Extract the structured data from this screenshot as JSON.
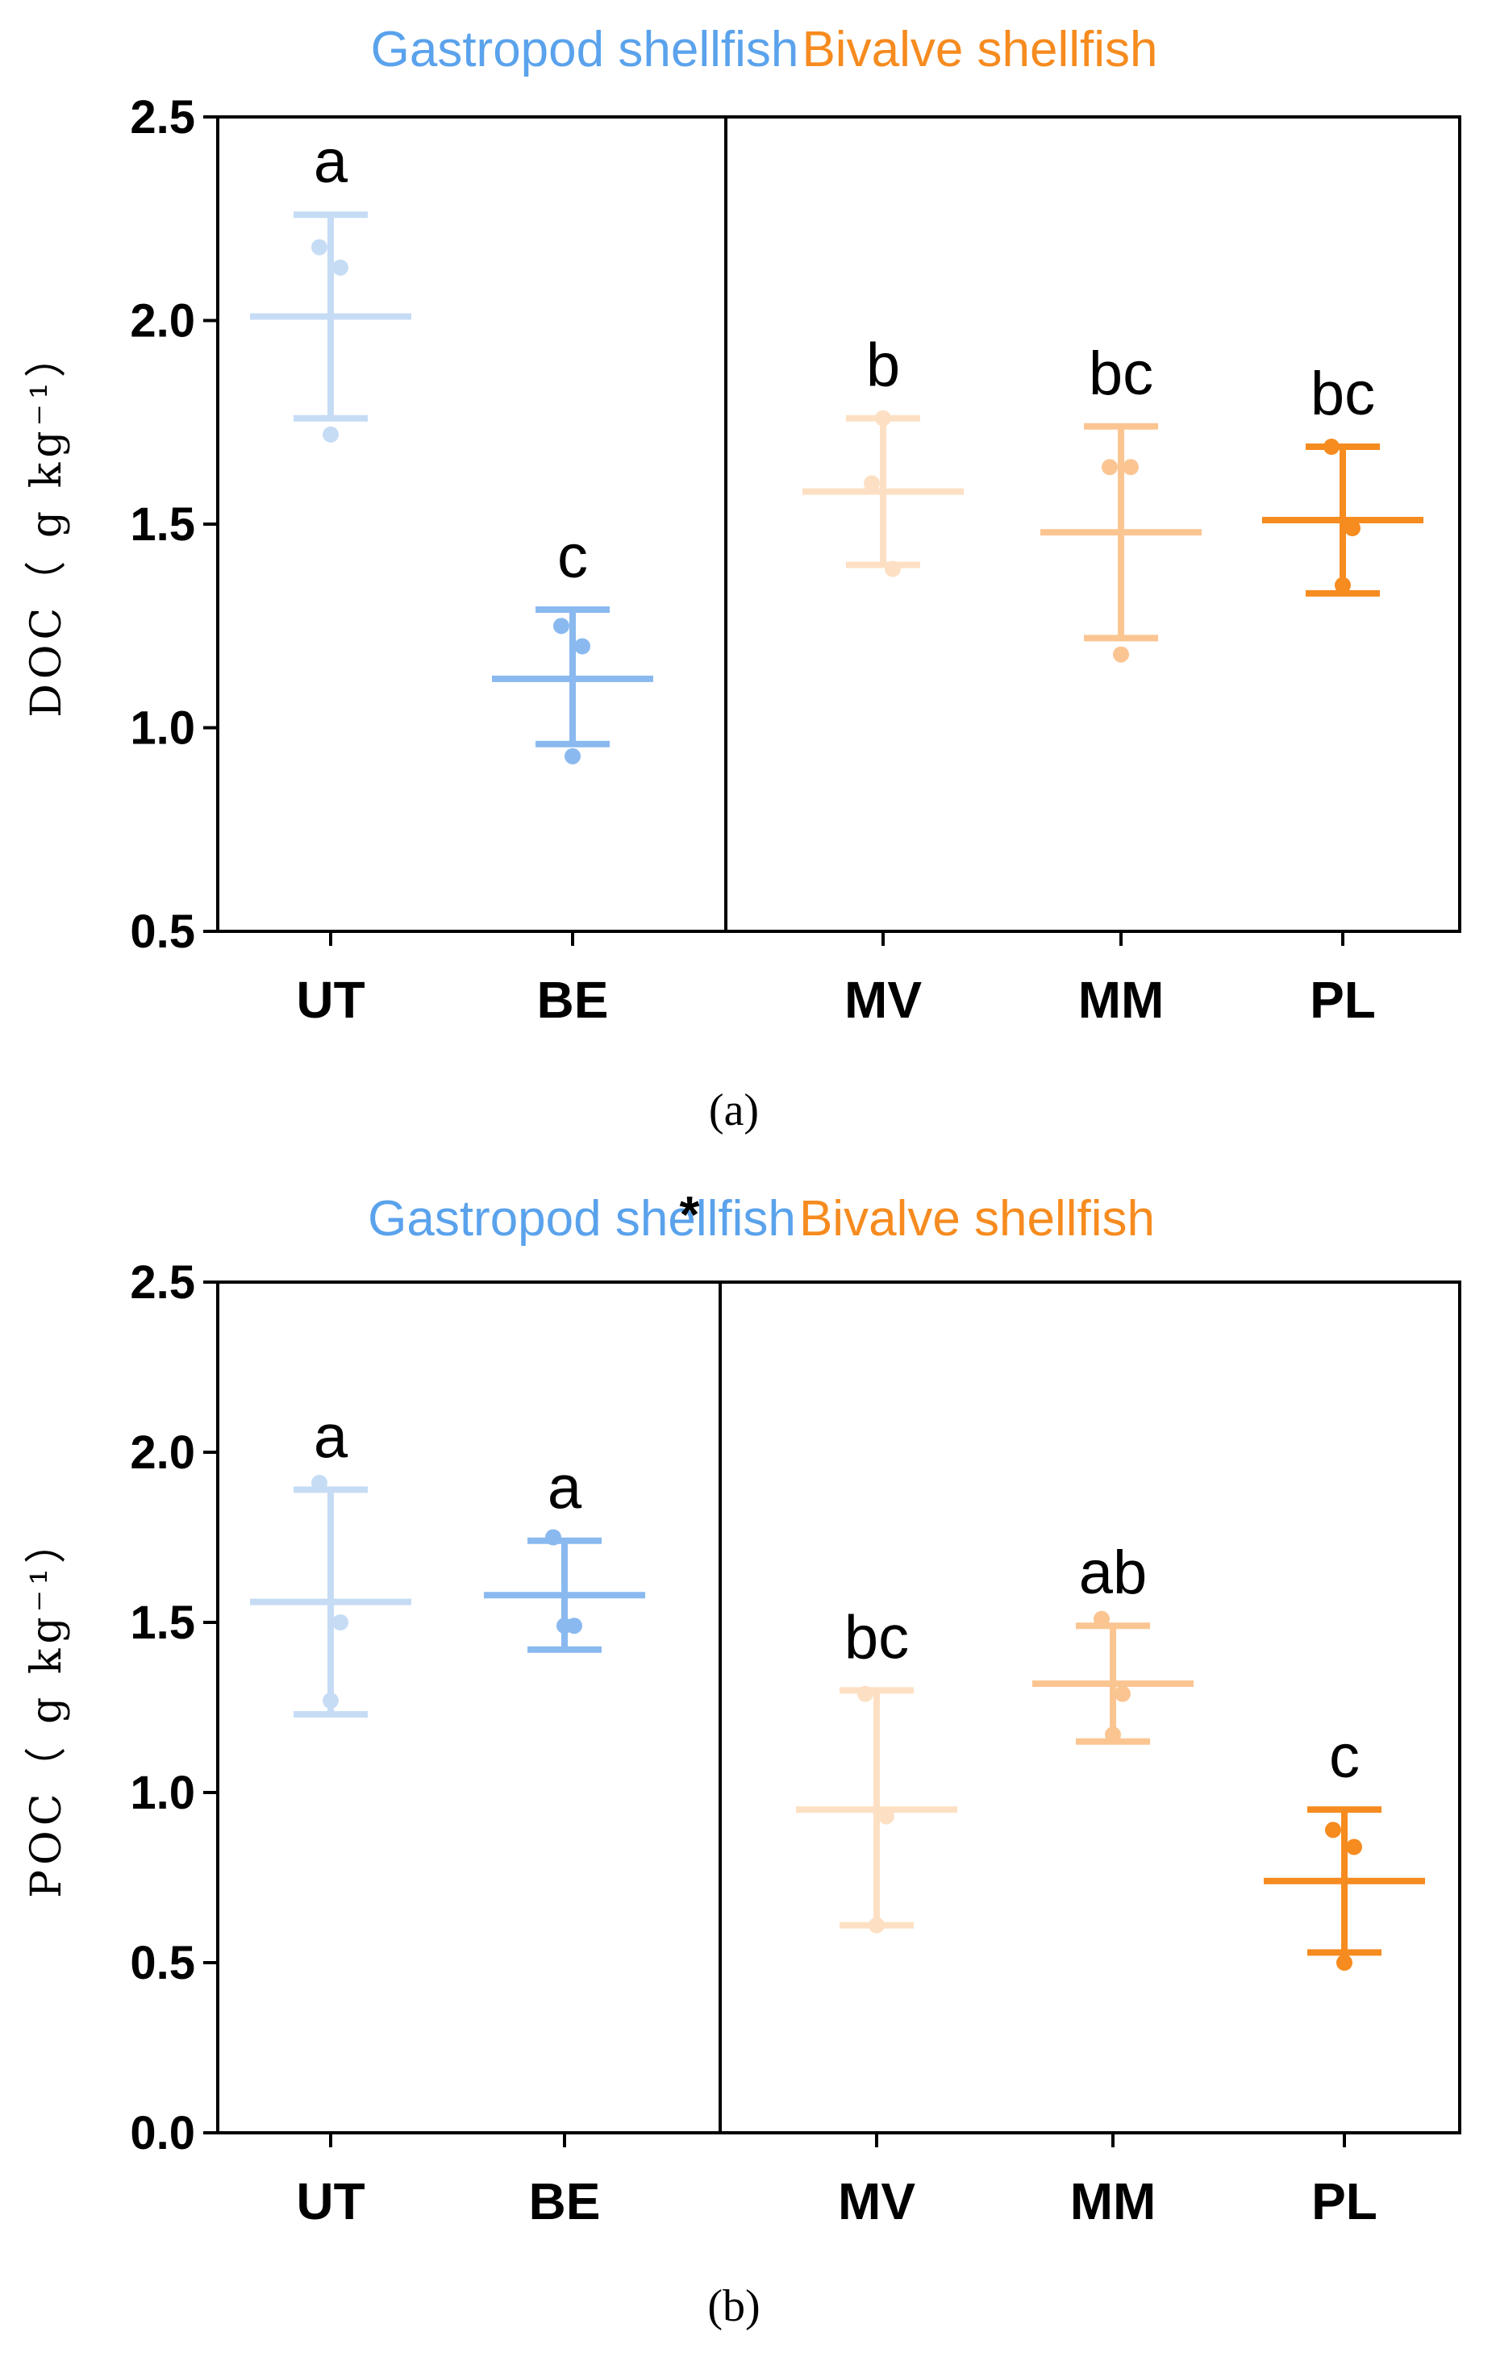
{
  "colors": {
    "UT": "#c6dcf5",
    "BE": "#8ab9ef",
    "MV": "#fde0c4",
    "MM": "#fbc592",
    "PL": "#f68b1f",
    "gastropod_label": "#5aa2ec",
    "bivalve_label": "#f68b1f",
    "axis": "#000000"
  },
  "chart_data": [
    {
      "type": "scatter",
      "panel_label": "(a)",
      "ylabel": "DOC（ g kg⁻¹）",
      "ylim": [
        0.5,
        2.5
      ],
      "yticks": [
        "0.5",
        "1.0",
        "1.5",
        "2.0",
        "2.5"
      ],
      "grid": false,
      "groups": [
        {
          "name": "Gastropod shellfish",
          "marker": "",
          "categories": [
            "UT",
            "BE"
          ]
        },
        {
          "name": "Bivalve shellfish",
          "marker": "",
          "categories": [
            "MV",
            "MM",
            "PL"
          ]
        }
      ],
      "categories": [
        "UT",
        "BE",
        "MV",
        "MM",
        "PL"
      ],
      "series": [
        {
          "name": "UT",
          "mean": 2.01,
          "sd_low": 1.76,
          "sd_high": 2.26,
          "points": [
            2.18,
            2.13,
            1.72
          ],
          "letter": "a"
        },
        {
          "name": "BE",
          "mean": 1.12,
          "sd_low": 0.96,
          "sd_high": 1.29,
          "points": [
            1.25,
            1.2,
            0.93
          ],
          "letter": "c"
        },
        {
          "name": "MV",
          "mean": 1.58,
          "sd_low": 1.4,
          "sd_high": 1.76,
          "points": [
            1.6,
            1.39,
            1.76
          ],
          "letter": "b"
        },
        {
          "name": "MM",
          "mean": 1.48,
          "sd_low": 1.22,
          "sd_high": 1.74,
          "points": [
            1.64,
            1.64,
            1.18
          ],
          "letter": "bc"
        },
        {
          "name": "PL",
          "mean": 1.51,
          "sd_low": 1.33,
          "sd_high": 1.69,
          "points": [
            1.69,
            1.49,
            1.35
          ],
          "letter": "bc"
        }
      ]
    },
    {
      "type": "scatter",
      "panel_label": "(b)",
      "ylabel": "POC（ g kg⁻¹）",
      "ylim": [
        0.0,
        2.5
      ],
      "yticks": [
        "0.0",
        "0.5",
        "1.0",
        "1.5",
        "2.0",
        "2.5"
      ],
      "grid": false,
      "groups": [
        {
          "name": "Gastropod shellfish",
          "marker": "*",
          "categories": [
            "UT",
            "BE"
          ]
        },
        {
          "name": "Bivalve shellfish",
          "marker": "",
          "categories": [
            "MV",
            "MM",
            "PL"
          ]
        }
      ],
      "categories": [
        "UT",
        "BE",
        "MV",
        "MM",
        "PL"
      ],
      "series": [
        {
          "name": "UT",
          "mean": 1.56,
          "sd_low": 1.23,
          "sd_high": 1.89,
          "points": [
            1.91,
            1.5,
            1.27
          ],
          "letter": "a"
        },
        {
          "name": "BE",
          "mean": 1.58,
          "sd_low": 1.42,
          "sd_high": 1.74,
          "points": [
            1.75,
            1.49,
            1.49
          ],
          "letter": "a"
        },
        {
          "name": "MV",
          "mean": 0.95,
          "sd_low": 0.61,
          "sd_high": 1.3,
          "points": [
            1.29,
            0.93,
            0.61
          ],
          "letter": "bc"
        },
        {
          "name": "MM",
          "mean": 1.32,
          "sd_low": 1.15,
          "sd_high": 1.49,
          "points": [
            1.51,
            1.29,
            1.17
          ],
          "letter": "ab"
        },
        {
          "name": "PL",
          "mean": 0.74,
          "sd_low": 0.53,
          "sd_high": 0.95,
          "points": [
            0.89,
            0.84,
            0.5
          ],
          "letter": "c"
        }
      ]
    }
  ]
}
